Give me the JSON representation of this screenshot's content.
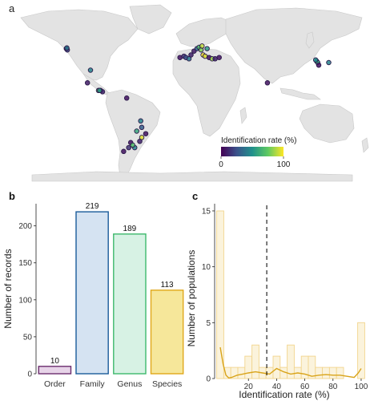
{
  "panels": [
    {
      "id": "a",
      "letter": "a"
    },
    {
      "id": "b",
      "letter": "b"
    },
    {
      "id": "c",
      "letter": "c"
    }
  ],
  "chart_data": [
    {
      "panel": "a",
      "type": "scatter",
      "title": "",
      "map": "world",
      "colorbar": {
        "label": "Identification rate (%)",
        "min": 0,
        "max": 100,
        "ticks": [
          0,
          100
        ],
        "colors": [
          "#440154",
          "#3b528b",
          "#21918c",
          "#5ec962",
          "#fde725"
        ]
      },
      "points": [
        {
          "lon": -122,
          "lat": 47,
          "rate": 5
        },
        {
          "lon": -121,
          "lat": 46,
          "rate": 20
        },
        {
          "lon": -121.5,
          "lat": 47.5,
          "rate": 40
        },
        {
          "lon": -98,
          "lat": 30,
          "rate": 45
        },
        {
          "lon": -101,
          "lat": 20,
          "rate": 8
        },
        {
          "lon": -90,
          "lat": 14,
          "rate": 80
        },
        {
          "lon": -88,
          "lat": 14,
          "rate": 30
        },
        {
          "lon": -86,
          "lat": 13,
          "rate": 10
        },
        {
          "lon": -89,
          "lat": 14,
          "rate": 55
        },
        {
          "lon": -62,
          "lat": 8,
          "rate": 5
        },
        {
          "lon": -48,
          "lat": -10,
          "rate": 45
        },
        {
          "lon": -47,
          "lat": -15,
          "rate": 30
        },
        {
          "lon": -52,
          "lat": -18,
          "rate": 60
        },
        {
          "lon": -43,
          "lat": -20,
          "rate": 5
        },
        {
          "lon": -47,
          "lat": -23,
          "rate": 95
        },
        {
          "lon": -49,
          "lat": -26,
          "rate": 10
        },
        {
          "lon": -58,
          "lat": -27,
          "rate": 5
        },
        {
          "lon": -60,
          "lat": -31,
          "rate": 15
        },
        {
          "lon": -54,
          "lat": -31,
          "rate": 45
        },
        {
          "lon": -56,
          "lat": -29,
          "rate": 70
        },
        {
          "lon": -65,
          "lat": -34,
          "rate": 5
        },
        {
          "lon": -9,
          "lat": 40,
          "rate": 5
        },
        {
          "lon": -5,
          "lat": 41,
          "rate": 15
        },
        {
          "lon": -3,
          "lat": 40,
          "rate": 25
        },
        {
          "lon": 2,
          "lat": 42,
          "rate": 10
        },
        {
          "lon": 0,
          "lat": 39,
          "rate": 40
        },
        {
          "lon": 5,
          "lat": 45,
          "rate": 8
        },
        {
          "lon": 8,
          "lat": 47,
          "rate": 35
        },
        {
          "lon": 10,
          "lat": 48,
          "rate": 70
        },
        {
          "lon": 12,
          "lat": 46,
          "rate": 80
        },
        {
          "lon": 13,
          "lat": 49,
          "rate": 90
        },
        {
          "lon": 14,
          "lat": 42,
          "rate": 100
        },
        {
          "lon": 16,
          "lat": 41,
          "rate": 95
        },
        {
          "lon": 18,
          "lat": 47,
          "rate": 55
        },
        {
          "lon": 20,
          "lat": 40,
          "rate": 5
        },
        {
          "lon": 23,
          "lat": 39,
          "rate": 85
        },
        {
          "lon": 26,
          "lat": 39,
          "rate": 10
        },
        {
          "lon": 30,
          "lat": 40,
          "rate": 5
        },
        {
          "lon": 78,
          "lat": 20,
          "rate": 5
        },
        {
          "lon": 127,
          "lat": 37,
          "rate": 40
        },
        {
          "lon": 128,
          "lat": 36,
          "rate": 60
        },
        {
          "lon": 126,
          "lat": 38,
          "rate": 50
        },
        {
          "lon": 129,
          "lat": 34,
          "rate": 5
        },
        {
          "lon": 139,
          "lat": 36,
          "rate": 45
        }
      ]
    },
    {
      "panel": "b",
      "type": "bar",
      "title": "",
      "categories": [
        "Order",
        "Family",
        "Genus",
        "Species"
      ],
      "values": [
        10,
        219,
        189,
        113
      ],
      "data_labels": [
        "10",
        "219",
        "189",
        "113"
      ],
      "fill_colors": [
        "#e7d4e8",
        "#d5e3f2",
        "#d7f2e4",
        "#f6e79a"
      ],
      "stroke_colors": [
        "#6b2d6e",
        "#1b5c9a",
        "#3db86b",
        "#e0a81b"
      ],
      "xlabel": "",
      "ylabel": "Number of records",
      "ylim": [
        0,
        230
      ],
      "yticks": [
        0,
        50,
        100,
        150,
        200
      ],
      "grid": false
    },
    {
      "panel": "c",
      "type": "bar",
      "title": "",
      "xlabel": "Identification rate (%)",
      "ylabel": "Number of populations",
      "xlim": [
        -4,
        104
      ],
      "ylim": [
        0,
        15.5
      ],
      "xticks": [
        20,
        40,
        60,
        80,
        100
      ],
      "yticks": [
        0,
        5,
        10,
        15
      ],
      "bins": [
        {
          "x0": -2.5,
          "x1": 2.5,
          "count": 15
        },
        {
          "x0": 2.5,
          "x1": 7.5,
          "count": 1
        },
        {
          "x0": 7.5,
          "x1": 12.5,
          "count": 1
        },
        {
          "x0": 12.5,
          "x1": 17.5,
          "count": 1
        },
        {
          "x0": 17.5,
          "x1": 22.5,
          "count": 2
        },
        {
          "x0": 22.5,
          "x1": 27.5,
          "count": 3
        },
        {
          "x0": 27.5,
          "x1": 32.5,
          "count": 1
        },
        {
          "x0": 32.5,
          "x1": 37.5,
          "count": 1
        },
        {
          "x0": 37.5,
          "x1": 42.5,
          "count": 2
        },
        {
          "x0": 42.5,
          "x1": 47.5,
          "count": 1
        },
        {
          "x0": 47.5,
          "x1": 52.5,
          "count": 3
        },
        {
          "x0": 52.5,
          "x1": 57.5,
          "count": 1
        },
        {
          "x0": 57.5,
          "x1": 62.5,
          "count": 2
        },
        {
          "x0": 62.5,
          "x1": 67.5,
          "count": 2
        },
        {
          "x0": 67.5,
          "x1": 72.5,
          "count": 1
        },
        {
          "x0": 72.5,
          "x1": 77.5,
          "count": 1
        },
        {
          "x0": 77.5,
          "x1": 82.5,
          "count": 1
        },
        {
          "x0": 82.5,
          "x1": 87.5,
          "count": 1
        },
        {
          "x0": 87.5,
          "x1": 92.5,
          "count": 0
        },
        {
          "x0": 92.5,
          "x1": 97.5,
          "count": 0
        },
        {
          "x0": 97.5,
          "x1": 102.5,
          "count": 5
        }
      ],
      "density_curve": {
        "x": [
          0,
          2,
          4,
          6,
          8,
          12,
          16,
          20,
          25,
          30,
          35,
          40,
          45,
          50,
          55,
          60,
          65,
          70,
          75,
          80,
          85,
          90,
          95,
          98,
          100
        ],
        "y": [
          2.8,
          1.3,
          0.3,
          0.05,
          0.1,
          0.3,
          0.4,
          0.5,
          0.6,
          0.5,
          0.4,
          0.9,
          0.6,
          0.4,
          0.5,
          0.4,
          0.2,
          0.3,
          0.35,
          0.3,
          0.3,
          0.2,
          0.1,
          0.5,
          0.9
        ]
      },
      "reference_line": {
        "x": 33,
        "style": "dashed"
      },
      "bar_fill": "#fbf3dc",
      "bar_stroke": "#f2d58e",
      "curve_color": "#d9a41a",
      "grid": false
    }
  ]
}
